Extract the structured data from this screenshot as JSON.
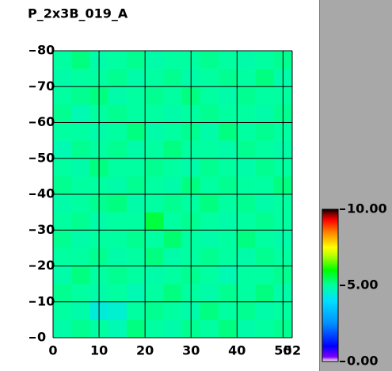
{
  "chart_data": {
    "type": "heatmap",
    "title": "P_2x3B_019_A",
    "xlim": [
      0,
      52
    ],
    "ylim": [
      0,
      80
    ],
    "xticks": [
      0,
      10,
      20,
      30,
      40,
      50,
      52
    ],
    "yticks": [
      0,
      10,
      20,
      30,
      40,
      50,
      60,
      70,
      80
    ],
    "grid": true,
    "xedges": [
      0,
      4,
      8,
      12,
      16,
      20,
      24,
      28,
      32,
      36,
      40,
      44,
      48,
      52
    ],
    "yedges": [
      0,
      5,
      10,
      15,
      20,
      25,
      30,
      35,
      40,
      45,
      50,
      55,
      60,
      65,
      70,
      75,
      80
    ],
    "z": [
      [
        4.9,
        5.1,
        5.0,
        4.8,
        5.2,
        5.0,
        4.9,
        5.1,
        5.0,
        5.2,
        4.9,
        5.0,
        5.1
      ],
      [
        5.0,
        4.9,
        4.4,
        4.5,
        5.0,
        5.1,
        5.0,
        4.9,
        5.2,
        5.0,
        5.1,
        4.9,
        5.0
      ],
      [
        5.1,
        5.0,
        4.9,
        5.0,
        4.8,
        5.0,
        5.2,
        5.0,
        4.9,
        5.1,
        5.0,
        5.2,
        4.9
      ],
      [
        4.9,
        5.2,
        5.0,
        5.1,
        5.0,
        4.9,
        5.0,
        5.1,
        5.0,
        4.8,
        5.0,
        5.0,
        5.1
      ],
      [
        5.0,
        5.0,
        5.1,
        4.9,
        5.0,
        5.2,
        4.9,
        5.0,
        5.1,
        5.0,
        4.9,
        5.1,
        5.0
      ],
      [
        5.1,
        4.9,
        5.0,
        5.0,
        5.1,
        5.0,
        5.3,
        5.0,
        4.9,
        5.0,
        5.2,
        5.0,
        4.9
      ],
      [
        5.0,
        5.1,
        4.9,
        5.0,
        5.0,
        5.6,
        5.0,
        5.1,
        5.0,
        4.9,
        5.0,
        5.1,
        5.0
      ],
      [
        4.9,
        5.0,
        5.1,
        5.2,
        4.9,
        5.0,
        5.1,
        5.0,
        5.2,
        5.0,
        5.1,
        4.9,
        5.0
      ],
      [
        5.1,
        5.0,
        5.0,
        4.9,
        5.1,
        5.0,
        4.9,
        5.2,
        5.0,
        5.1,
        5.0,
        5.0,
        5.2
      ],
      [
        5.0,
        4.9,
        5.2,
        5.0,
        5.0,
        5.1,
        5.0,
        4.9,
        5.1,
        5.0,
        4.9,
        5.1,
        5.0
      ],
      [
        4.8,
        5.1,
        5.0,
        5.1,
        4.9,
        5.0,
        5.2,
        5.0,
        5.0,
        4.9,
        5.1,
        5.0,
        4.9
      ],
      [
        5.0,
        5.0,
        4.9,
        5.0,
        5.2,
        4.9,
        5.0,
        5.1,
        4.9,
        5.2,
        5.0,
        5.1,
        5.0
      ],
      [
        5.1,
        4.8,
        5.0,
        5.1,
        5.0,
        5.0,
        4.9,
        5.0,
        5.1,
        5.0,
        5.0,
        4.9,
        5.1
      ],
      [
        5.0,
        5.1,
        5.2,
        4.9,
        5.0,
        5.1,
        5.0,
        5.2,
        5.0,
        4.9,
        5.1,
        5.0,
        5.0
      ],
      [
        4.9,
        5.0,
        5.0,
        5.1,
        4.9,
        5.0,
        5.1,
        4.9,
        5.0,
        5.1,
        5.0,
        5.2,
        4.9
      ],
      [
        5.0,
        5.2,
        4.9,
        5.0,
        5.1,
        4.9,
        5.0,
        5.0,
        5.1,
        5.0,
        4.9,
        5.0,
        5.1
      ]
    ],
    "colorscale": [
      [
        0,
        "#ffffff"
      ],
      [
        0.3,
        "#8000ff"
      ],
      [
        1,
        "#0000ff"
      ],
      [
        2.5,
        "#0090ff"
      ],
      [
        4,
        "#00e0ff"
      ],
      [
        5,
        "#00ffa0"
      ],
      [
        6,
        "#00ff00"
      ],
      [
        7,
        "#c0ff00"
      ],
      [
        7.5,
        "#ffff00"
      ],
      [
        8.5,
        "#ff8000"
      ],
      [
        9.3,
        "#ff0000"
      ],
      [
        9.7,
        "#800000"
      ],
      [
        10,
        "#000000"
      ]
    ],
    "colorbar_lim": [
      0,
      10
    ],
    "colorbar_ticks": [
      {
        "value": 0,
        "label": "0.00"
      },
      {
        "value": 5,
        "label": "5.00"
      },
      {
        "value": 10,
        "label": "10.00"
      }
    ]
  }
}
